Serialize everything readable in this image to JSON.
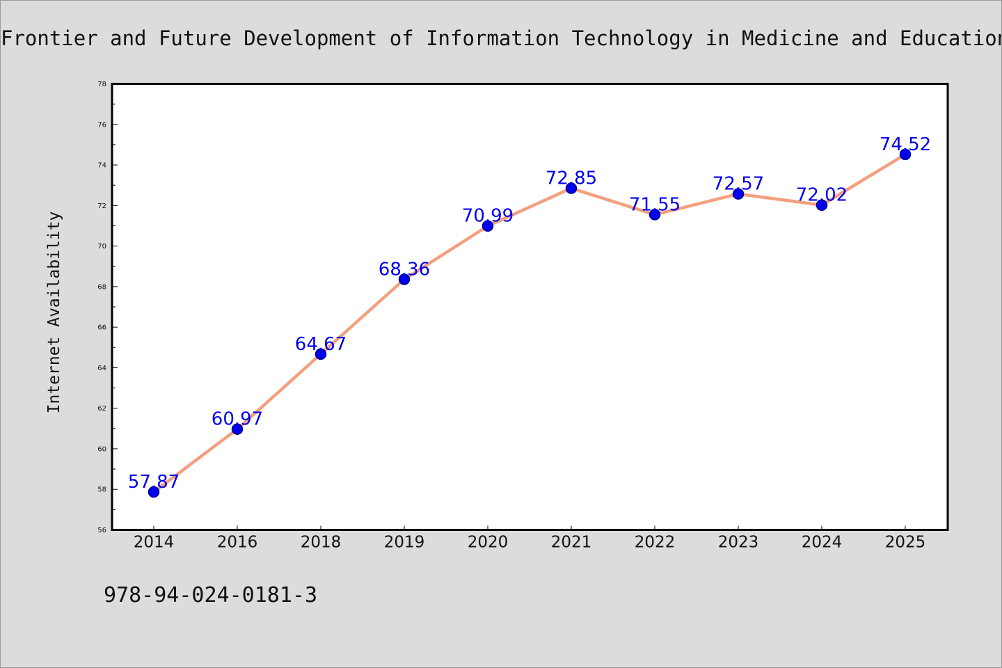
{
  "footer": {
    "isbn": "978-94-024-0181-3"
  },
  "chart_data": {
    "type": "line",
    "title": "Frontier and Future Development of Information Technology in Medicine and Education",
    "xlabel": "",
    "ylabel": "Internet Availability",
    "categories": [
      "2014",
      "2016",
      "2018",
      "2019",
      "2020",
      "2021",
      "2022",
      "2023",
      "2024",
      "2025"
    ],
    "series": [
      {
        "values": [
          57.87,
          60.97,
          64.67,
          68.36,
          70.99,
          72.85,
          71.55,
          72.57,
          72.02,
          74.52
        ]
      }
    ],
    "data_labels": [
      "57.87",
      "60.97",
      "64.67",
      "68.36",
      "70.99",
      "72.85",
      "71.55",
      "72.57",
      "72.02",
      "74.52"
    ],
    "ylim": [
      56,
      78
    ],
    "yticks": [
      "56",
      "58",
      "60",
      "62",
      "64",
      "66",
      "68",
      "70",
      "72",
      "74",
      "76",
      "78"
    ],
    "grid": false,
    "legend": "none",
    "colors": {
      "line": "#f4a07e",
      "marker": "#0000ee",
      "marker_edge": "#00008b",
      "label": "#0000ee",
      "plot_bg": "#ffffff",
      "page_bg": "#dcdcdc"
    }
  }
}
